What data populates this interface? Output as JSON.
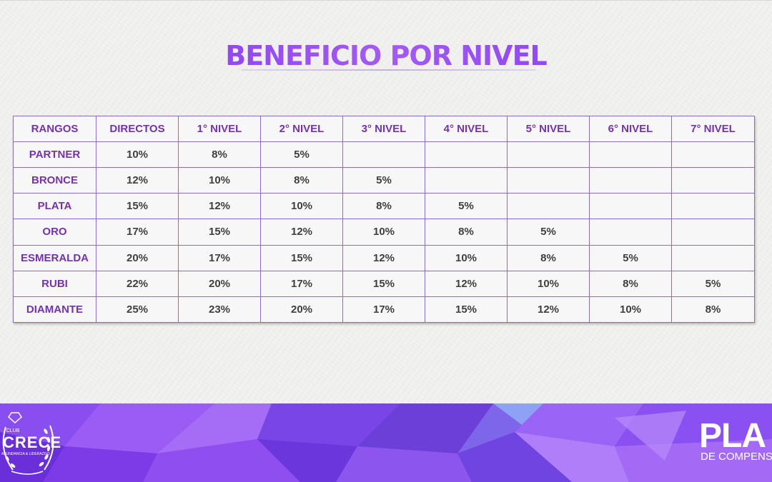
{
  "title": "BENEFICIO POR NIVEL",
  "table": {
    "headers": [
      "RANGOS",
      "DIRECTOS",
      "1° NIVEL",
      "2° NIVEL",
      "3° NIVEL",
      "4° NIVEL",
      "5° NIVEL",
      "6° NIVEL",
      "7° NIVEL"
    ],
    "rows": [
      {
        "rank": "PARTNER",
        "values": [
          "10%",
          "8%",
          "5%",
          "",
          "",
          "",
          "",
          ""
        ]
      },
      {
        "rank": "BRONCE",
        "values": [
          "12%",
          "10%",
          "8%",
          "5%",
          "",
          "",
          "",
          ""
        ]
      },
      {
        "rank": "PLATA",
        "values": [
          "15%",
          "12%",
          "10%",
          "8%",
          "5%",
          "",
          "",
          ""
        ]
      },
      {
        "rank": "ORO",
        "values": [
          "17%",
          "15%",
          "12%",
          "10%",
          "8%",
          "5%",
          "",
          ""
        ]
      },
      {
        "rank": "ESMERALDA",
        "values": [
          "20%",
          "17%",
          "15%",
          "12%",
          "10%",
          "8%",
          "5%",
          ""
        ]
      },
      {
        "rank": "RUBI",
        "values": [
          "22%",
          "20%",
          "17%",
          "15%",
          "12%",
          "10%",
          "8%",
          "5%"
        ]
      },
      {
        "rank": "DIAMANTE",
        "values": [
          "25%",
          "23%",
          "20%",
          "17%",
          "15%",
          "12%",
          "10%",
          "8%"
        ]
      }
    ]
  },
  "logo_left": {
    "club": "CLUB",
    "name": "CRECE",
    "tagline": "ABUNDANCIA & LIDERAZGO",
    "icon": "diamond-laurel-icon"
  },
  "plan": {
    "word": "PLA",
    "subtitle": "DE COMPENSAC"
  },
  "colors": {
    "accent": "#7433a8",
    "title": "#8a3ff0",
    "grid": "#9467c7",
    "banner": "#7b3ee6"
  }
}
